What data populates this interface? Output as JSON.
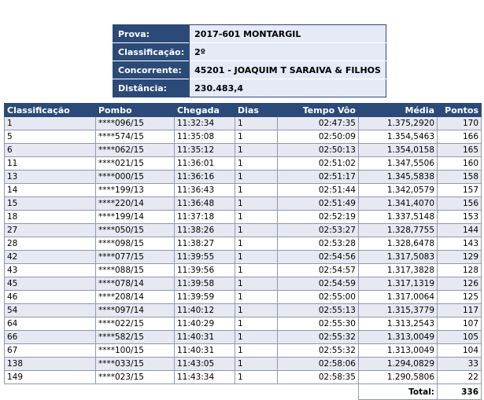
{
  "info": [
    {
      "label": "Prova:",
      "value": "2017-601 MONTARGIL"
    },
    {
      "label": "Classificação:",
      "value": "2º"
    },
    {
      "label": "Concorrente:",
      "value": "45201 - JOAQUIM T SARAIVA & FILHOS"
    },
    {
      "label": "Distância:",
      "value": "230.483,4"
    }
  ],
  "columns": [
    "Classificação",
    "Pombo",
    "Chegada",
    "Dias",
    "Tempo Vôo",
    "Média",
    "Pontos"
  ],
  "rows": [
    [
      "1",
      "****096/15",
      "11:32:34",
      "1",
      "02:47:35",
      "1.375,2920",
      "170"
    ],
    [
      "5",
      "****574/15",
      "11:35:08",
      "1",
      "02:50:09",
      "1.354,5463",
      "166"
    ],
    [
      "6",
      "****062/15",
      "11:35:12",
      "1",
      "02:50:13",
      "1.354,0158",
      "165"
    ],
    [
      "11",
      "****021/15",
      "11:36:01",
      "1",
      "02:51:02",
      "1.347,5506",
      "160"
    ],
    [
      "13",
      "****000/15",
      "11:36:16",
      "1",
      "02:51:17",
      "1.345,5838",
      "158"
    ],
    [
      "14",
      "****199/13",
      "11:36:43",
      "1",
      "02:51:44",
      "1.342,0579",
      "157"
    ],
    [
      "15",
      "****220/14",
      "11:36:48",
      "1",
      "02:51:49",
      "1.341,4070",
      "156"
    ],
    [
      "18",
      "****199/14",
      "11:37:18",
      "1",
      "02:52:19",
      "1.337,5148",
      "153"
    ],
    [
      "27",
      "****050/15",
      "11:38:26",
      "1",
      "02:53:27",
      "1.328,7755",
      "144"
    ],
    [
      "28",
      "****098/15",
      "11:38:27",
      "1",
      "02:53:28",
      "1.328,6478",
      "143"
    ],
    [
      "42",
      "****077/15",
      "11:39:55",
      "1",
      "02:54:56",
      "1.317,5083",
      "129"
    ],
    [
      "43",
      "****088/15",
      "11:39:56",
      "1",
      "02:54:57",
      "1.317,3828",
      "128"
    ],
    [
      "45",
      "****078/14",
      "11:39:58",
      "1",
      "02:54:59",
      "1.317,1319",
      "126"
    ],
    [
      "46",
      "****208/14",
      "11:39:59",
      "1",
      "02:55:00",
      "1.317,0064",
      "125"
    ],
    [
      "54",
      "****097/14",
      "11:40:12",
      "1",
      "02:55:13",
      "1.315,3779",
      "117"
    ],
    [
      "64",
      "****022/15",
      "11:40:29",
      "1",
      "02:55:30",
      "1.313,2543",
      "107"
    ],
    [
      "66",
      "****582/15",
      "11:40:31",
      "1",
      "02:55:32",
      "1.313,0049",
      "105"
    ],
    [
      "67",
      "****100/15",
      "11:40:31",
      "1",
      "02:55:32",
      "1.313,0049",
      "104"
    ],
    [
      "138",
      "****033/15",
      "11:43:05",
      "1",
      "02:58:06",
      "1.294,0829",
      "33"
    ],
    [
      "149",
      "****023/15",
      "11:43:34",
      "1",
      "02:58:35",
      "1.290,5806",
      "22"
    ]
  ],
  "total": {
    "label": "Total:",
    "value": "336"
  }
}
